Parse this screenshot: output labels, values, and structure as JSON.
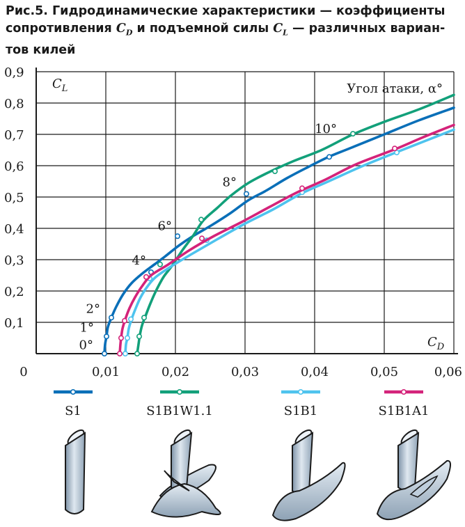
{
  "caption": {
    "prefix": "Рис.5.",
    "line1": "Гидродинамические характеристики — коэффициенты",
    "line2a": "сопротивления",
    "cd_main": "C",
    "cd_sub": "D",
    "line2b": "и подъемной силы",
    "cl_main": "C",
    "cl_sub": "L",
    "line2c": "— различных вариан-",
    "line3": "тов килей"
  },
  "chart_data": {
    "type": "line",
    "xlabel_main": "C",
    "xlabel_sub": "D",
    "ylabel_main": "C",
    "ylabel_sub": "L",
    "xlim": [
      0,
      0.06
    ],
    "ylim": [
      0,
      0.9
    ],
    "x_ticks": [
      "0",
      "0,01",
      "0,02",
      "0,03",
      "0,04",
      "0,05",
      "0,06"
    ],
    "y_ticks": [
      "0,1",
      "0,2",
      "0,3",
      "0,4",
      "0,5",
      "0,6",
      "0,7",
      "0,8",
      "0,9"
    ],
    "grid": true,
    "angle_axis_title": "Угол атаки, α°",
    "angle_labels": [
      {
        "text": "0°",
        "x": 0.0082,
        "y": 0.015
      },
      {
        "text": "1°",
        "x": 0.0083,
        "y": 0.07
      },
      {
        "text": "2°",
        "x": 0.0092,
        "y": 0.13
      },
      {
        "text": "4°",
        "x": 0.0158,
        "y": 0.285
      },
      {
        "text": "6°",
        "x": 0.0195,
        "y": 0.395
      },
      {
        "text": "8°",
        "x": 0.0288,
        "y": 0.535
      },
      {
        "text": "10°",
        "x": 0.0432,
        "y": 0.705
      }
    ],
    "series": [
      {
        "name": "S1",
        "color": "#0a6fb8",
        "points": [
          [
            0.0098,
            0
          ],
          [
            0.0099,
            0.03
          ],
          [
            0.0101,
            0.055
          ],
          [
            0.0103,
            0.085
          ],
          [
            0.0108,
            0.115
          ],
          [
            0.0115,
            0.15
          ],
          [
            0.0125,
            0.19
          ],
          [
            0.0137,
            0.225
          ],
          [
            0.0152,
            0.255
          ],
          [
            0.017,
            0.285
          ],
          [
            0.0185,
            0.31
          ],
          [
            0.0205,
            0.345
          ],
          [
            0.0225,
            0.375
          ],
          [
            0.0252,
            0.41
          ],
          [
            0.028,
            0.45
          ],
          [
            0.0305,
            0.49
          ],
          [
            0.033,
            0.52
          ],
          [
            0.036,
            0.56
          ],
          [
            0.039,
            0.595
          ],
          [
            0.042,
            0.628
          ],
          [
            0.045,
            0.655
          ],
          [
            0.05,
            0.7
          ],
          [
            0.055,
            0.745
          ],
          [
            0.06,
            0.785
          ]
        ],
        "markers": [
          [
            0.0098,
            0
          ],
          [
            0.0101,
            0.055
          ],
          [
            0.0108,
            0.115
          ],
          [
            0.0165,
            0.26
          ],
          [
            0.0203,
            0.375
          ],
          [
            0.0302,
            0.51
          ],
          [
            0.0421,
            0.628
          ]
        ]
      },
      {
        "name": "S1B1W1.1",
        "color": "#12a07a",
        "points": [
          [
            0.0145,
            0
          ],
          [
            0.0147,
            0.03
          ],
          [
            0.0149,
            0.06
          ],
          [
            0.0152,
            0.09
          ],
          [
            0.0157,
            0.12
          ],
          [
            0.0164,
            0.16
          ],
          [
            0.0172,
            0.2
          ],
          [
            0.0183,
            0.245
          ],
          [
            0.0195,
            0.28
          ],
          [
            0.021,
            0.33
          ],
          [
            0.0225,
            0.375
          ],
          [
            0.024,
            0.425
          ],
          [
            0.026,
            0.465
          ],
          [
            0.028,
            0.505
          ],
          [
            0.0305,
            0.545
          ],
          [
            0.0335,
            0.58
          ],
          [
            0.037,
            0.615
          ],
          [
            0.041,
            0.65
          ],
          [
            0.0455,
            0.7
          ],
          [
            0.05,
            0.74
          ],
          [
            0.055,
            0.78
          ],
          [
            0.06,
            0.826
          ]
        ],
        "markers": [
          [
            0.0145,
            0
          ],
          [
            0.0148,
            0.055
          ],
          [
            0.0155,
            0.115
          ],
          [
            0.0178,
            0.285
          ],
          [
            0.0237,
            0.428
          ],
          [
            0.0343,
            0.582
          ],
          [
            0.0455,
            0.702
          ]
        ]
      },
      {
        "name": "S1B1",
        "color": "#4ec3ee",
        "points": [
          [
            0.0128,
            0
          ],
          [
            0.0129,
            0.03
          ],
          [
            0.0131,
            0.05
          ],
          [
            0.0133,
            0.08
          ],
          [
            0.0137,
            0.11
          ],
          [
            0.0143,
            0.145
          ],
          [
            0.015,
            0.18
          ],
          [
            0.016,
            0.215
          ],
          [
            0.0172,
            0.245
          ],
          [
            0.0195,
            0.28
          ],
          [
            0.0225,
            0.32
          ],
          [
            0.026,
            0.365
          ],
          [
            0.03,
            0.415
          ],
          [
            0.034,
            0.46
          ],
          [
            0.038,
            0.51
          ],
          [
            0.042,
            0.55
          ],
          [
            0.047,
            0.6
          ],
          [
            0.052,
            0.645
          ],
          [
            0.056,
            0.68
          ],
          [
            0.06,
            0.715
          ]
        ],
        "markers": [
          [
            0.0128,
            0
          ],
          [
            0.0131,
            0.05
          ],
          [
            0.0136,
            0.11
          ],
          [
            0.0163,
            0.24
          ],
          [
            0.0245,
            0.362
          ],
          [
            0.0382,
            0.515
          ],
          [
            0.0518,
            0.642
          ]
        ]
      },
      {
        "name": "S1B1A1",
        "color": "#d4237a",
        "points": [
          [
            0.012,
            0
          ],
          [
            0.0121,
            0.03
          ],
          [
            0.0122,
            0.05
          ],
          [
            0.0124,
            0.08
          ],
          [
            0.0128,
            0.11
          ],
          [
            0.0134,
            0.145
          ],
          [
            0.0142,
            0.18
          ],
          [
            0.0152,
            0.215
          ],
          [
            0.0165,
            0.25
          ],
          [
            0.019,
            0.285
          ],
          [
            0.022,
            0.33
          ],
          [
            0.0255,
            0.375
          ],
          [
            0.0295,
            0.42
          ],
          [
            0.0335,
            0.468
          ],
          [
            0.0375,
            0.515
          ],
          [
            0.0415,
            0.555
          ],
          [
            0.046,
            0.605
          ],
          [
            0.0515,
            0.652
          ],
          [
            0.0555,
            0.69
          ],
          [
            0.06,
            0.73
          ]
        ],
        "markers": [
          [
            0.012,
            0
          ],
          [
            0.0122,
            0.05
          ],
          [
            0.0127,
            0.105
          ],
          [
            0.0158,
            0.245
          ],
          [
            0.0238,
            0.368
          ],
          [
            0.0382,
            0.528
          ],
          [
            0.0515,
            0.655
          ]
        ]
      }
    ]
  },
  "illustrations": [
    {
      "icon": "keel-s1-icon",
      "series": "S1"
    },
    {
      "icon": "keel-s1b1w11-icon",
      "series": "S1B1W1.1"
    },
    {
      "icon": "keel-s1b1-icon",
      "series": "S1B1"
    },
    {
      "icon": "keel-s1b1a1-icon",
      "series": "S1B1A1"
    }
  ]
}
